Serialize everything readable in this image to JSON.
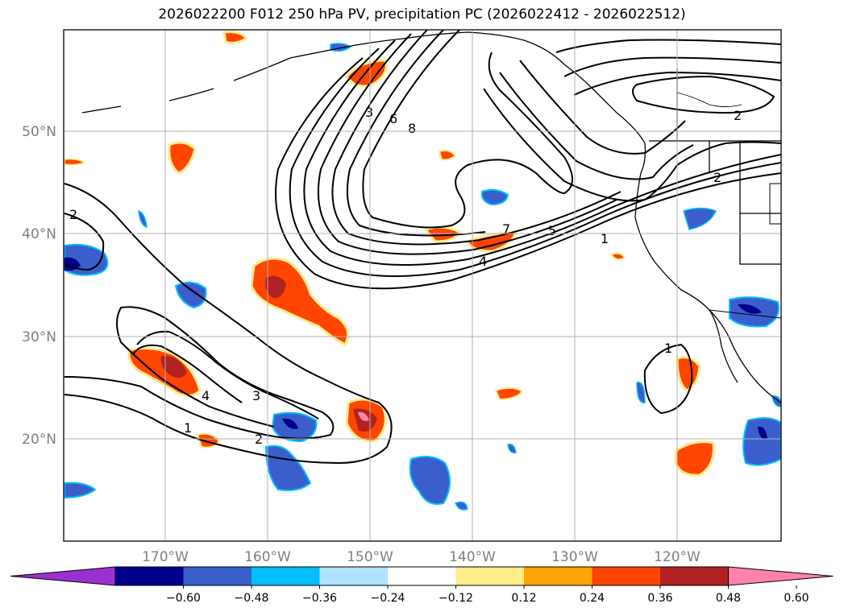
{
  "title": "2026022200 F012 250 hPa PV, precipitation PC (2026022412 - 2026022512)",
  "lat_labels": [
    "50°N",
    "40°N",
    "30°N",
    "20°N"
  ],
  "lon_labels": [
    "170°W",
    "160°W",
    "150°W",
    "140°W",
    "130°W",
    "120°W"
  ],
  "colorbar": {
    "tick_labels": [
      "−0.60",
      "−0.48",
      "−0.36",
      "−0.24",
      "−0.12",
      "0.12",
      "0.24",
      "0.36",
      "0.48",
      "0.60"
    ],
    "colors": [
      "#9b30d0",
      "#00008b",
      "#3a5fcd",
      "#00bfff",
      "#b0e2ff",
      "#ffffff",
      "#ffec8b",
      "#ffa500",
      "#ff4500",
      "#b22222",
      "#ff82ab"
    ]
  },
  "contour_labels": {
    "c_3a": "3",
    "c_6": "6",
    "c_8": "8",
    "c_2ne": "2",
    "c_2e": "2",
    "c_2w": "2",
    "c_7": "7",
    "c_5": "5",
    "c_1e": "1",
    "c_4e": "4",
    "c_1s": "1",
    "c_4s": "4",
    "c_3s": "3",
    "c_1sw": "1",
    "c_2s": "2"
  },
  "colors": {
    "pv_contour": "#000000",
    "coastline": "#000000",
    "grid": "#b0b0b0",
    "positive_fill": "#ff4500",
    "negative_fill": "#3a5fcd"
  }
}
